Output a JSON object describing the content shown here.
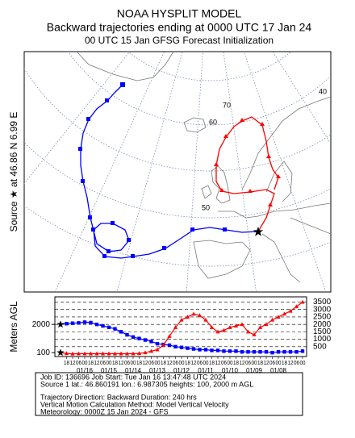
{
  "header": {
    "title": "NOAA HYSPLIT MODEL",
    "subtitle": "Backward trajectories ending at 0000 UTC 17 Jan 24",
    "subtitle2": "00 UTC 15 Jan    GFSG  Forecast Initialization"
  },
  "map": {
    "side_label": "Source ★   at   46.86 N   6.99 E",
    "grid_labels": [
      "40",
      "70",
      "60",
      "50"
    ]
  },
  "chart_data": {
    "type": "line",
    "ylabel": "Meters AGL",
    "xlim": [
      0,
      -240
    ],
    "ylim": [
      0,
      3800
    ],
    "y2lim": [
      0,
      3800
    ],
    "yticks": [
      100,
      2000
    ],
    "y2ticks": [
      500,
      1000,
      1500,
      2000,
      2500,
      3000,
      3500
    ],
    "x": [
      0,
      -6,
      -12,
      -18,
      -24,
      -30,
      -36,
      -42,
      -48,
      -54,
      -60,
      -66,
      -72,
      -78,
      -84,
      -90,
      -96,
      -102,
      -108,
      -114,
      -120,
      -126,
      -132,
      -138,
      -144,
      -150,
      -156,
      -162,
      -168,
      -174,
      -180,
      -186,
      -192,
      -198,
      -204,
      -210,
      -216,
      -222,
      -228,
      -234,
      -240
    ],
    "xticks": [
      {
        "value": -6,
        "label": "18"
      },
      {
        "value": -12,
        "label": "12"
      },
      {
        "value": -18,
        "label": "06"
      },
      {
        "value": -24,
        "label": "00"
      },
      {
        "value": -30,
        "label": "18"
      },
      {
        "value": -36,
        "label": "12"
      },
      {
        "value": -42,
        "label": "06"
      },
      {
        "value": -48,
        "label": "00"
      },
      {
        "value": -54,
        "label": "18"
      },
      {
        "value": -60,
        "label": "12"
      },
      {
        "value": -66,
        "label": "06"
      },
      {
        "value": -72,
        "label": "00"
      },
      {
        "value": -78,
        "label": "18"
      },
      {
        "value": -84,
        "label": "12"
      },
      {
        "value": -90,
        "label": "06"
      },
      {
        "value": -96,
        "label": "00"
      },
      {
        "value": -102,
        "label": "18"
      },
      {
        "value": -108,
        "label": "12"
      },
      {
        "value": -114,
        "label": "06"
      },
      {
        "value": -120,
        "label": "00"
      },
      {
        "value": -126,
        "label": "18"
      },
      {
        "value": -132,
        "label": "12"
      },
      {
        "value": -138,
        "label": "06"
      },
      {
        "value": -144,
        "label": "00"
      },
      {
        "value": -150,
        "label": "18"
      },
      {
        "value": -156,
        "label": "12"
      },
      {
        "value": -162,
        "label": "06"
      },
      {
        "value": -168,
        "label": "00"
      },
      {
        "value": -174,
        "label": "18"
      },
      {
        "value": -180,
        "label": "12"
      },
      {
        "value": -186,
        "label": "06"
      },
      {
        "value": -192,
        "label": "00"
      },
      {
        "value": -198,
        "label": "18"
      },
      {
        "value": -204,
        "label": "12"
      },
      {
        "value": -210,
        "label": "06"
      },
      {
        "value": -216,
        "label": "00"
      },
      {
        "value": -222,
        "label": "18"
      },
      {
        "value": -228,
        "label": "12"
      },
      {
        "value": -234,
        "label": "06"
      },
      {
        "value": -240,
        "label": "00"
      }
    ],
    "date_ticks": [
      {
        "value": -24,
        "label": "01/16"
      },
      {
        "value": -48,
        "label": "01/15"
      },
      {
        "value": -72,
        "label": "01/14"
      },
      {
        "value": -96,
        "label": "01/13"
      },
      {
        "value": -120,
        "label": "01/12"
      },
      {
        "value": -144,
        "label": "01/11"
      },
      {
        "value": -168,
        "label": "01/10"
      },
      {
        "value": -192,
        "label": "01/09"
      },
      {
        "value": -216,
        "label": "01/08"
      }
    ],
    "series": [
      {
        "color": "#0000ff",
        "marker": "square",
        "values": [
          2000,
          2050,
          2080,
          2100,
          2150,
          2120,
          2000,
          1900,
          1800,
          1700,
          1500,
          1300,
          1150,
          1050,
          950,
          850,
          700,
          650,
          600,
          500,
          450,
          400,
          350,
          300,
          300,
          250,
          250,
          200,
          200,
          200,
          150,
          150,
          150,
          150,
          150,
          100,
          150,
          150,
          150,
          150,
          200
        ]
      },
      {
        "color": "#ff0000",
        "marker": "triangle",
        "values": [
          100,
          50,
          20,
          30,
          30,
          30,
          30,
          30,
          30,
          30,
          30,
          30,
          30,
          50,
          100,
          200,
          300,
          600,
          1200,
          1800,
          2300,
          2500,
          2700,
          2600,
          2300,
          1800,
          1500,
          1600,
          1800,
          1900,
          2000,
          1500,
          1300,
          1800,
          2000,
          2300,
          2500,
          2700,
          2900,
          3200,
          3500
        ]
      }
    ]
  },
  "footer": {
    "lines": [
      "Job ID: 136696          Job Start: Tue Jan 16 13:47:48 UTC 2024",
      "Source 1 lat.: 46.860191  lon.: 6.987305  heights: 100, 2000 m AGL",
      "Trajectory Direction: Backward      Duration: 240 hrs",
      "Vertical Motion Calculation Method:      Model Vertical Velocity",
      "Meteorology: 0000Z 15 Jan 2024 - GFS"
    ]
  }
}
